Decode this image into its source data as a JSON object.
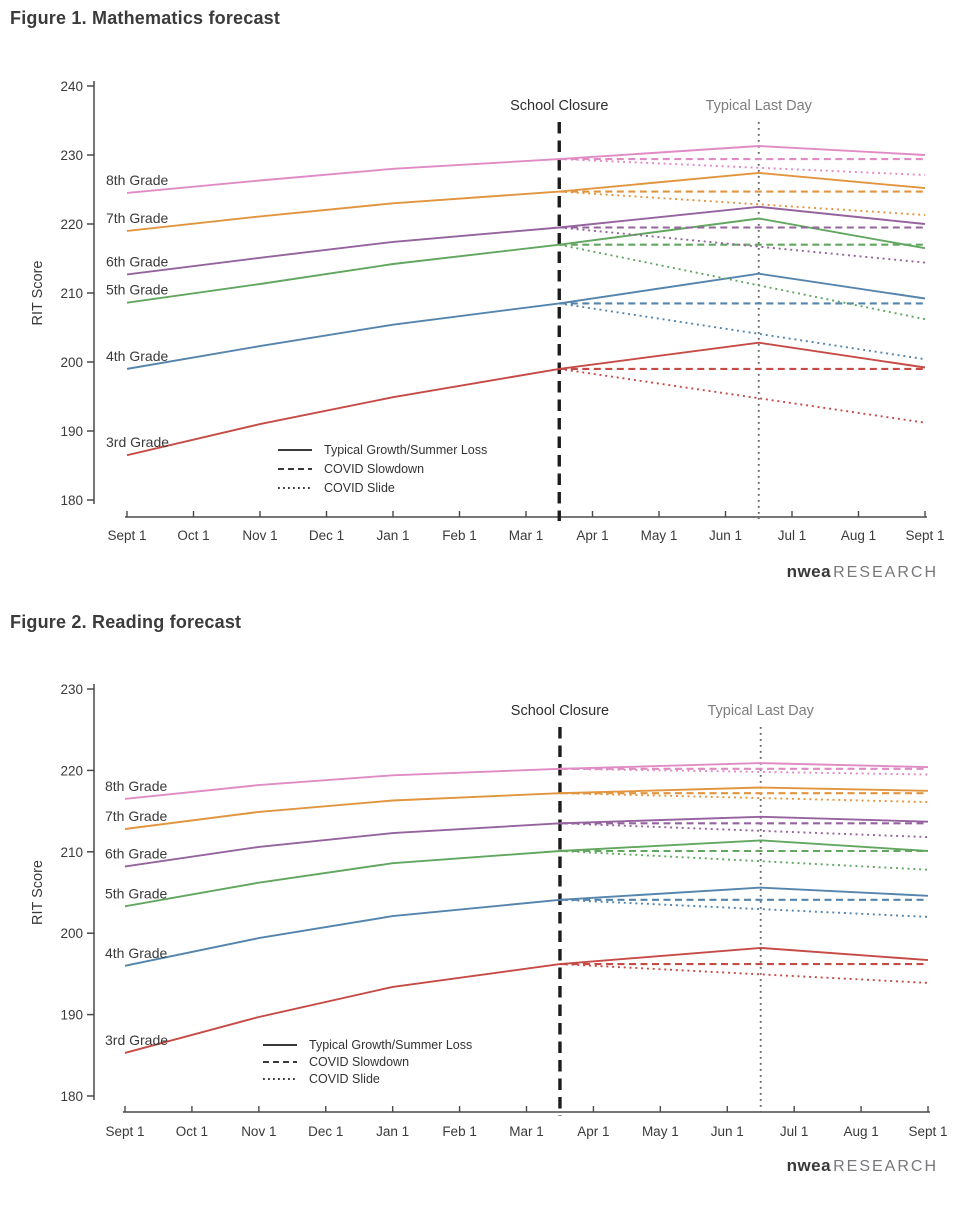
{
  "branding": {
    "brand": "nwea",
    "suffix": "RESEARCH"
  },
  "chart_data": [
    {
      "type": "line",
      "title": "Figure 1. Mathematics forecast",
      "ylabel": "RIT Score",
      "ylim": [
        180,
        240
      ],
      "yticks": [
        180,
        190,
        200,
        210,
        220,
        230,
        240
      ],
      "x_months": [
        "Sept 1",
        "Oct 1",
        "Nov 1",
        "Dec 1",
        "Jan 1",
        "Feb 1",
        "Mar 1",
        "Apr 1",
        "May 1",
        "Jun 1",
        "Jul 1",
        "Aug 1",
        "Sept 1"
      ],
      "grid": false,
      "annotations": {
        "school_closure": {
          "label": "School Closure",
          "x_month": 6.5
        },
        "typical_last_day": {
          "label": "Typical Last Day",
          "x_month": 9.5
        }
      },
      "legend": [
        {
          "label": "Typical Growth/Summer Loss",
          "style": "solid"
        },
        {
          "label": "COVID Slowdown",
          "style": "dashed"
        },
        {
          "label": "COVID Slide",
          "style": "dotted"
        }
      ],
      "series": [
        {
          "grade": "3rd Grade",
          "color": "#c64b46",
          "typical": {
            "x": [
              0,
              2,
              4,
              6.5,
              9.5,
              12
            ],
            "y": [
              186.5,
              191.0,
              194.9,
              199.0,
              202.8,
              199.2
            ]
          },
          "covid_slowdown": {
            "x": [
              6.5,
              12
            ],
            "y": [
              199.0,
              199.0
            ]
          },
          "covid_slide": {
            "x": [
              6.5,
              12
            ],
            "y": [
              199.0,
              191.2
            ]
          }
        },
        {
          "grade": "4th Grade",
          "color": "#5585ad",
          "typical": {
            "x": [
              0,
              2,
              4,
              6.5,
              9.5,
              12
            ],
            "y": [
              199.0,
              202.3,
              205.4,
              208.5,
              212.8,
              209.2
            ]
          },
          "covid_slowdown": {
            "x": [
              6.5,
              12
            ],
            "y": [
              208.5,
              208.5
            ]
          },
          "covid_slide": {
            "x": [
              6.5,
              12
            ],
            "y": [
              208.5,
              200.4
            ]
          }
        },
        {
          "grade": "5th Grade",
          "color": "#61a75f",
          "typical": {
            "x": [
              0,
              2,
              4,
              6.5,
              9.5,
              12
            ],
            "y": [
              208.6,
              211.3,
              214.2,
              217.0,
              220.8,
              216.5
            ]
          },
          "covid_slowdown": {
            "x": [
              6.5,
              12
            ],
            "y": [
              217.0,
              217.0
            ]
          },
          "covid_slide": {
            "x": [
              6.5,
              12
            ],
            "y": [
              217.0,
              206.2
            ]
          }
        },
        {
          "grade": "6th Grade",
          "color": "#95639e",
          "typical": {
            "x": [
              0,
              2,
              4,
              6.5,
              9.5,
              12
            ],
            "y": [
              212.7,
              215.1,
              217.4,
              219.5,
              222.5,
              220.0
            ]
          },
          "covid_slowdown": {
            "x": [
              6.5,
              12
            ],
            "y": [
              219.5,
              219.5
            ]
          },
          "covid_slide": {
            "x": [
              6.5,
              12
            ],
            "y": [
              219.5,
              214.4
            ]
          }
        },
        {
          "grade": "7th Grade",
          "color": "#e2953f",
          "typical": {
            "x": [
              0,
              2,
              4,
              6.5,
              9.5,
              12
            ],
            "y": [
              219.0,
              221.1,
              223.0,
              224.7,
              227.4,
              225.2
            ]
          },
          "covid_slowdown": {
            "x": [
              6.5,
              12
            ],
            "y": [
              224.7,
              224.7
            ]
          },
          "covid_slide": {
            "x": [
              6.5,
              12
            ],
            "y": [
              224.7,
              221.3
            ]
          }
        },
        {
          "grade": "8th Grade",
          "color": "#e18bc5",
          "typical": {
            "x": [
              0,
              2,
              4,
              6.5,
              9.5,
              12
            ],
            "y": [
              224.5,
              226.3,
              228.0,
              229.4,
              231.3,
              230.0
            ]
          },
          "covid_slowdown": {
            "x": [
              6.5,
              12
            ],
            "y": [
              229.4,
              229.4
            ]
          },
          "covid_slide": {
            "x": [
              6.5,
              12
            ],
            "y": [
              229.4,
              227.1
            ]
          }
        }
      ]
    },
    {
      "type": "line",
      "title": "Figure 2. Reading forecast",
      "ylabel": "RIT Score",
      "ylim": [
        180,
        230
      ],
      "yticks": [
        180,
        190,
        200,
        210,
        220,
        230
      ],
      "x_months": [
        "Sept 1",
        "Oct 1",
        "Nov 1",
        "Dec 1",
        "Jan 1",
        "Feb 1",
        "Mar 1",
        "Apr 1",
        "May 1",
        "Jun 1",
        "Jul 1",
        "Aug 1",
        "Sept 1"
      ],
      "grid": false,
      "annotations": {
        "school_closure": {
          "label": "School Closure",
          "x_month": 6.5
        },
        "typical_last_day": {
          "label": "Typical Last Day",
          "x_month": 9.5
        }
      },
      "legend": [
        {
          "label": "Typical Growth/Summer Loss",
          "style": "solid"
        },
        {
          "label": "COVID Slowdown",
          "style": "dashed"
        },
        {
          "label": "COVID Slide",
          "style": "dotted"
        }
      ],
      "series": [
        {
          "grade": "3rd Grade",
          "color": "#c64b46",
          "typical": {
            "x": [
              0,
              2,
              4,
              6.5,
              9.5,
              12
            ],
            "y": [
              185.3,
              189.7,
              193.4,
              196.2,
              198.2,
              196.7
            ]
          },
          "covid_slowdown": {
            "x": [
              6.5,
              12
            ],
            "y": [
              196.2,
              196.2
            ]
          },
          "covid_slide": {
            "x": [
              6.5,
              12
            ],
            "y": [
              196.2,
              193.9
            ]
          }
        },
        {
          "grade": "4th Grade",
          "color": "#5585ad",
          "typical": {
            "x": [
              0,
              2,
              4,
              6.5,
              9.5,
              12
            ],
            "y": [
              196.0,
              199.4,
              202.1,
              204.1,
              205.6,
              204.6
            ]
          },
          "covid_slowdown": {
            "x": [
              6.5,
              12
            ],
            "y": [
              204.1,
              204.1
            ]
          },
          "covid_slide": {
            "x": [
              6.5,
              12
            ],
            "y": [
              204.1,
              202.0
            ]
          }
        },
        {
          "grade": "5th Grade",
          "color": "#61a75f",
          "typical": {
            "x": [
              0,
              2,
              4,
              6.5,
              9.5,
              12
            ],
            "y": [
              203.3,
              206.2,
              208.6,
              210.1,
              211.4,
              210.1
            ]
          },
          "covid_slowdown": {
            "x": [
              6.5,
              12
            ],
            "y": [
              210.1,
              210.1
            ]
          },
          "covid_slide": {
            "x": [
              6.5,
              12
            ],
            "y": [
              210.1,
              207.8
            ]
          }
        },
        {
          "grade": "6th Grade",
          "color": "#95639e",
          "typical": {
            "x": [
              0,
              2,
              4,
              6.5,
              9.5,
              12
            ],
            "y": [
              208.2,
              210.6,
              212.3,
              213.5,
              214.3,
              213.7
            ]
          },
          "covid_slowdown": {
            "x": [
              6.5,
              12
            ],
            "y": [
              213.5,
              213.5
            ]
          },
          "covid_slide": {
            "x": [
              6.5,
              12
            ],
            "y": [
              213.5,
              211.8
            ]
          }
        },
        {
          "grade": "7th Grade",
          "color": "#e2953f",
          "typical": {
            "x": [
              0,
              2,
              4,
              6.5,
              9.5,
              12
            ],
            "y": [
              212.8,
              214.9,
              216.3,
              217.2,
              217.9,
              217.5
            ]
          },
          "covid_slowdown": {
            "x": [
              6.5,
              12
            ],
            "y": [
              217.2,
              217.2
            ]
          },
          "covid_slide": {
            "x": [
              6.5,
              12
            ],
            "y": [
              217.2,
              216.1
            ]
          }
        },
        {
          "grade": "8th Grade",
          "color": "#e18bc5",
          "typical": {
            "x": [
              0,
              2,
              4,
              6.5,
              9.5,
              12
            ],
            "y": [
              216.5,
              218.2,
              219.4,
              220.2,
              220.9,
              220.4
            ]
          },
          "covid_slowdown": {
            "x": [
              6.5,
              12
            ],
            "y": [
              220.2,
              220.2
            ]
          },
          "covid_slide": {
            "x": [
              6.5,
              12
            ],
            "y": [
              220.2,
              219.5
            ]
          }
        }
      ]
    }
  ],
  "colors": {
    "axis": "#4a4a4a",
    "text": "#3a3a3a",
    "closure_line": "#1c1c1c",
    "last_day_line": "#666666",
    "last_day_text": "#7d7d7d",
    "legend_text": "#333333"
  }
}
